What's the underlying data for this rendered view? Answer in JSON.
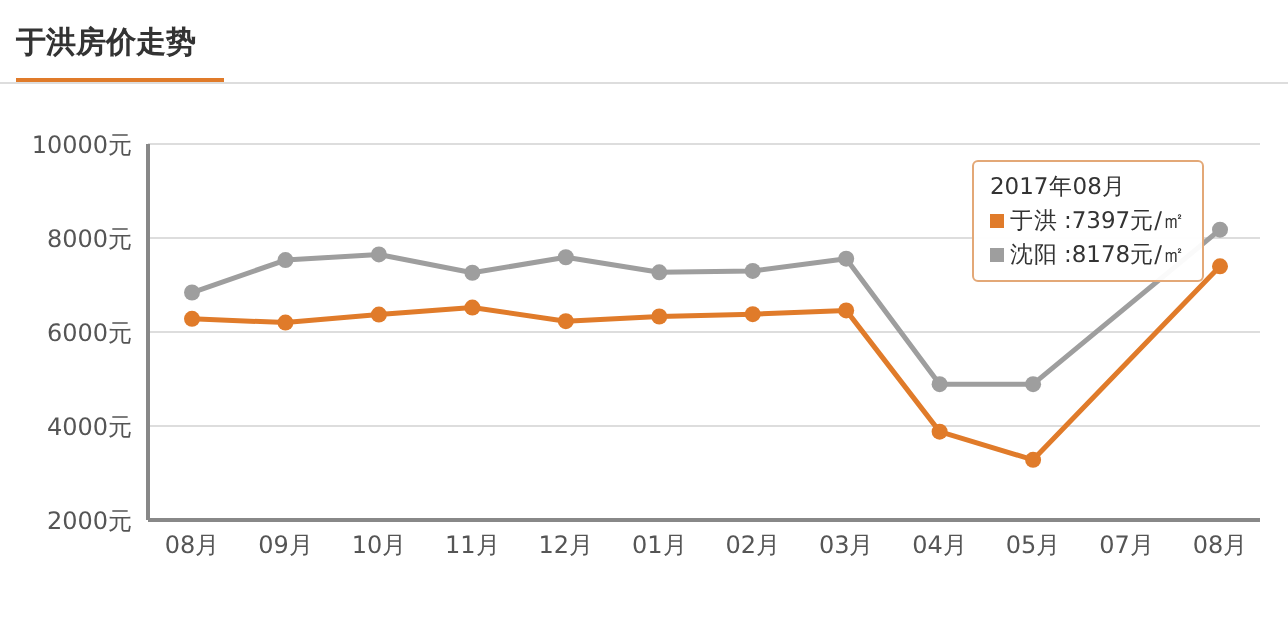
{
  "chart_data": {
    "type": "line",
    "title": "于洪房价走势",
    "categories": [
      "08月",
      "09月",
      "10月",
      "11月",
      "12月",
      "01月",
      "02月",
      "03月",
      "04月",
      "05月",
      "07月",
      "08月"
    ],
    "series": [
      {
        "name": "于洪",
        "color": "#e07b2a",
        "values": [
          6280,
          6200,
          6370,
          6520,
          6230,
          6330,
          6380,
          6460,
          3880,
          3280,
          null,
          7397
        ],
        "value_labels": [
          null,
          null,
          null,
          null,
          null,
          null,
          null,
          null,
          null,
          null,
          null,
          ":7397元/㎡"
        ]
      },
      {
        "name": "沈阳",
        "color": "#9e9e9e",
        "values": [
          6840,
          7530,
          7650,
          7260,
          7590,
          7270,
          7300,
          7560,
          4890,
          4890,
          null,
          8178
        ],
        "value_labels": [
          null,
          null,
          null,
          null,
          null,
          null,
          null,
          null,
          null,
          null,
          null,
          ":8178元/㎡"
        ]
      }
    ],
    "annotations": [
      "2017年08月"
    ],
    "ylim": [
      2000,
      10000
    ],
    "yticks": [
      {
        "value": 2000,
        "label": "2000元"
      },
      {
        "value": 4000,
        "label": "4000元"
      },
      {
        "value": 6000,
        "label": "6000元"
      },
      {
        "value": 8000,
        "label": "8000元"
      },
      {
        "value": 10000,
        "label": "10000元"
      }
    ],
    "grid": "y",
    "legend": "top right",
    "marker": "circle",
    "line_style": "solid"
  }
}
